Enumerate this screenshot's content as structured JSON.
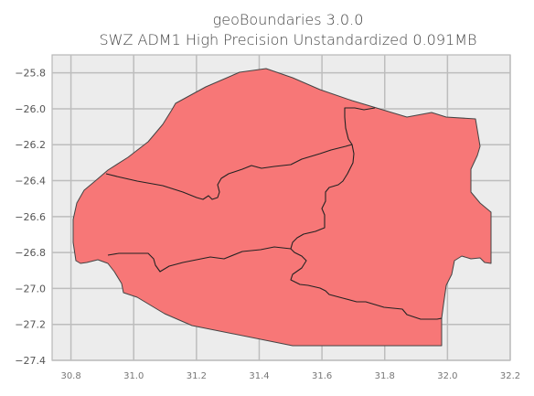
{
  "title_line1": "geoBoundaries 3.0.0",
  "title_line2": "SWZ ADM1 High Precision Unstandardized 0.091MB",
  "chart_data": {
    "type": "map",
    "x_ticks": [
      "30.8",
      "31.0",
      "31.2",
      "31.4",
      "31.6",
      "31.8",
      "32.0",
      "32.2"
    ],
    "y_ticks": [
      "−25.8",
      "−26.0",
      "−26.2",
      "−26.4",
      "−26.6",
      "−26.8",
      "−27.0",
      "−27.2",
      "−27.4"
    ],
    "xlim": [
      30.74,
      32.2
    ],
    "ylim": [
      -27.4,
      -25.7
    ],
    "grid": true,
    "fill_color": "#f77777",
    "edge_color": "#444444",
    "background_color": "#ececec"
  }
}
